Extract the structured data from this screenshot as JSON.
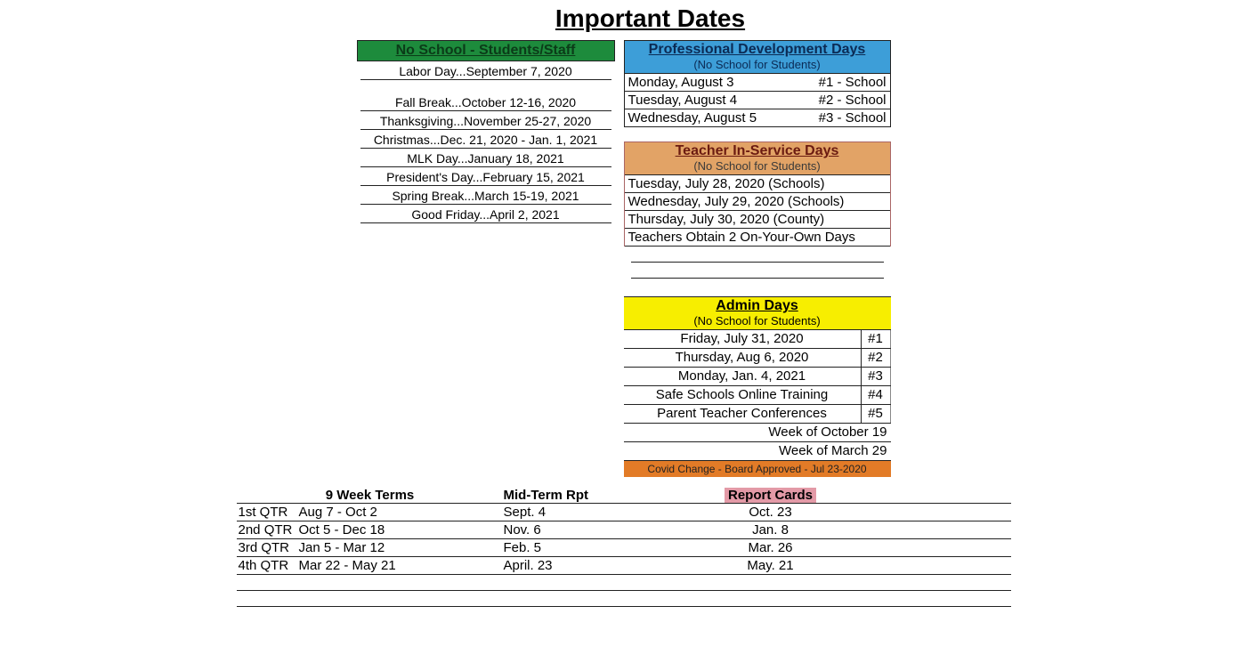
{
  "title": "Important Dates",
  "noSchool": {
    "header": "No School - Students/Staff",
    "items": [
      "Labor Day...September 7, 2020",
      "Fall Break...October 12-16, 2020",
      "Thanksgiving...November 25-27, 2020",
      "Christmas...Dec. 21, 2020 - Jan. 1, 2021",
      "MLK Day...January 18, 2021",
      "President's Day...February 15, 2021",
      "Spring Break...March 15-19, 2021",
      "Good Friday...April 2, 2021"
    ]
  },
  "pd": {
    "header": "Professional Development Days",
    "sub": "(No School for Students)",
    "rows": [
      {
        "date": "Monday, August 3",
        "num": "#1 - School"
      },
      {
        "date": "Tuesday, August 4",
        "num": "#2 - School"
      },
      {
        "date": "Wednesday, August 5",
        "num": "#3 - School"
      }
    ]
  },
  "inservice": {
    "header": "Teacher In-Service Days",
    "sub": "(No School for Students)",
    "rows": [
      "Tuesday, July 28, 2020 (Schools)",
      "Wednesday, July 29, 2020 (Schools)",
      "Thursday, July 30, 2020 (County)",
      "Teachers Obtain 2 On-Your-Own Days"
    ]
  },
  "admin": {
    "header": "Admin Days",
    "sub": "(No School for Students)",
    "rows": [
      {
        "date": "Friday, July 31, 2020",
        "num": "#1"
      },
      {
        "date": "Thursday, Aug 6, 2020",
        "num": "#2"
      },
      {
        "date": "Monday, Jan. 4, 2021",
        "num": "#3"
      },
      {
        "date": "Safe Schools Online Training",
        "num": "#4"
      },
      {
        "date": "Parent Teacher Conferences",
        "num": "#5"
      }
    ],
    "weeks": [
      "Week of October 19",
      "Week of March 29"
    ],
    "covid": "Covid Change - Board Approved - Jul 23-2020"
  },
  "terms": {
    "headers": {
      "h1": "9 Week Terms",
      "h2": "Mid-Term Rpt",
      "h3": "Report Cards"
    },
    "rows": [
      {
        "qtr": "1st QTR",
        "range": "Aug 7 - Oct 2",
        "mid": "Sept. 4",
        "card": "Oct. 23"
      },
      {
        "qtr": "2nd QTR",
        "range": "Oct 5 - Dec 18",
        "mid": "Nov. 6",
        "card": "Jan. 8"
      },
      {
        "qtr": "3rd QTR",
        "range": "Jan 5 - Mar 12",
        "mid": "Feb. 5",
        "card": "Mar. 26"
      },
      {
        "qtr": "4th QTR",
        "range": "Mar 22 - May 21",
        "mid": "April. 23",
        "card": "May. 21"
      }
    ]
  },
  "colors": {
    "noSchoolHeaderBg": "#1d8b3c",
    "pdHeaderBg": "#3d9ed8",
    "inserviceHeaderBg": "#e2a366",
    "adminHeaderBg": "#f7ee00",
    "covidBg": "#e27b27",
    "reportCardsBg": "#e39aa7",
    "border": "#222222",
    "pageBg": "#ffffff"
  }
}
